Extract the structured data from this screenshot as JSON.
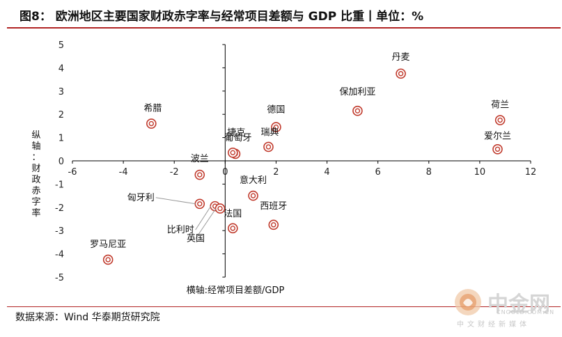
{
  "header": {
    "title": "图8：  欧洲地区主要国家财政赤字率与经常项目差额与 GDP 比重丨单位：%"
  },
  "footer": {
    "source": "数据来源：Wind  华泰期货研究院"
  },
  "watermark": {
    "name": "中金网",
    "domain": "CNGOLD.COM.CN",
    "slogan": "中文财经新媒体"
  },
  "colors": {
    "accent": "#b12424",
    "marker": "#c0392b",
    "axis": "#000000"
  },
  "chart_data": {
    "type": "scatter",
    "xlabel": "横轴:经常项目差额/GDP",
    "ylabel": "纵轴：财政赤字率",
    "xlim": [
      -6,
      12
    ],
    "ylim": [
      -5,
      5
    ],
    "xticks": [
      -6,
      -4,
      -2,
      0,
      2,
      4,
      6,
      8,
      10,
      12
    ],
    "yticks": [
      5,
      4,
      3,
      2,
      1,
      0,
      -1,
      -2,
      -3,
      -4,
      -5
    ],
    "points": [
      {
        "name": "丹麦",
        "x": 6.9,
        "y": 3.75
      },
      {
        "name": "荷兰",
        "x": 10.8,
        "y": 1.75
      },
      {
        "name": "爱尔兰",
        "x": 10.7,
        "y": 0.5
      },
      {
        "name": "保加利亚",
        "x": 5.2,
        "y": 2.15
      },
      {
        "name": "德国",
        "x": 2.0,
        "y": 1.45
      },
      {
        "name": "瑞典",
        "x": 1.7,
        "y": 0.6
      },
      {
        "name": "希腊",
        "x": -2.9,
        "y": 1.6
      },
      {
        "name": "葡萄牙",
        "x": 0.4,
        "y": 0.3
      },
      {
        "name": "捷克",
        "x": 0.3,
        "y": 0.35
      },
      {
        "name": "波兰",
        "x": -1.0,
        "y": -0.6
      },
      {
        "name": "意大利",
        "x": 1.1,
        "y": -1.5
      },
      {
        "name": "匈牙利",
        "x": -1.0,
        "y": -1.85
      },
      {
        "name": "比利时",
        "x": -0.4,
        "y": -1.95
      },
      {
        "name": "英国",
        "x": -0.2,
        "y": -2.05
      },
      {
        "name": "法国",
        "x": 0.3,
        "y": -2.9
      },
      {
        "name": "西班牙",
        "x": 1.9,
        "y": -2.75
      },
      {
        "name": "罗马尼亚",
        "x": -4.6,
        "y": -4.25
      }
    ],
    "grid": false,
    "legend": "none"
  }
}
